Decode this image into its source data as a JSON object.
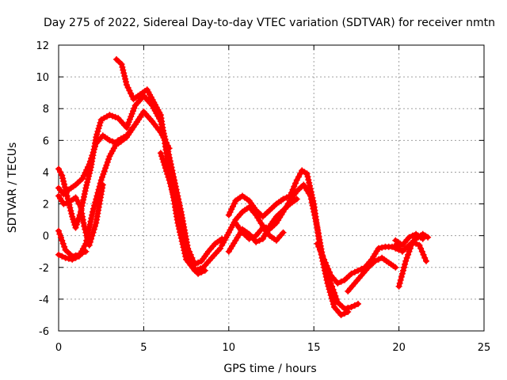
{
  "chart_data": {
    "type": "scatter",
    "title": "Day 275 of 2022, Sidereal Day-to-day VTEC variation (SDTVAR) for receiver nmtn",
    "xlabel": "GPS time / hours",
    "ylabel": "SDTVAR / TECUs",
    "xlim": [
      0,
      25
    ],
    "ylim": [
      -6,
      12
    ],
    "xticks": [
      0,
      5,
      10,
      15,
      20,
      25
    ],
    "xtick_labels": [
      "0",
      "5",
      "10",
      "15",
      "20",
      "25"
    ],
    "yticks": [
      -6,
      -4,
      -2,
      0,
      2,
      4,
      6,
      8,
      10,
      12
    ],
    "ytick_labels": [
      "-6",
      "-4",
      "-2",
      "0",
      "2",
      "4",
      "6",
      "8",
      "10",
      "12"
    ],
    "grid": true,
    "marker": "+",
    "color": "#ff0000",
    "series": [
      {
        "name": "track-1",
        "x": [
          0.0,
          0.2,
          0.5,
          0.8,
          1.0,
          1.3,
          1.6,
          1.9,
          2.2,
          2.5,
          3.0,
          3.5,
          4.0,
          4.5,
          5.0,
          5.3
        ],
        "y": [
          4.2,
          3.8,
          2.5,
          1.2,
          0.5,
          1.5,
          3.0,
          4.3,
          6.2,
          7.3,
          7.6,
          7.4,
          6.8,
          8.2,
          8.8,
          8.5
        ]
      },
      {
        "name": "track-2",
        "x": [
          0.0,
          0.3,
          0.6,
          1.0,
          1.4,
          1.8,
          2.2,
          2.6,
          3.0,
          3.5,
          4.0,
          4.5,
          5.0,
          5.5,
          6.0,
          6.5
        ],
        "y": [
          3.0,
          2.6,
          2.9,
          3.2,
          3.6,
          4.5,
          5.8,
          6.3,
          6.0,
          5.8,
          6.2,
          7.0,
          7.8,
          7.2,
          6.5,
          5.5
        ]
      },
      {
        "name": "track-3",
        "x": [
          0.0,
          0.4,
          0.8,
          1.2,
          1.6,
          2.0,
          2.5,
          3.0,
          3.5,
          4.0,
          4.5,
          5.0,
          5.5
        ],
        "y": [
          -1.2,
          -1.4,
          -1.5,
          -1.3,
          -0.5,
          1.5,
          3.5,
          5.0,
          6.0,
          6.3,
          7.0,
          7.8,
          7.2
        ]
      },
      {
        "name": "track-4",
        "x": [
          0.0,
          0.3,
          0.6,
          1.0,
          1.3,
          1.5,
          1.8,
          2.2,
          2.6
        ],
        "y": [
          2.5,
          2.0,
          2.1,
          2.4,
          1.8,
          0.6,
          -0.6,
          0.8,
          3.2
        ]
      },
      {
        "name": "track-5",
        "x": [
          0.0,
          0.4,
          0.8,
          1.2,
          1.6
        ],
        "y": [
          0.3,
          -0.9,
          -1.3,
          -1.2,
          -1.0
        ]
      },
      {
        "name": "track-6",
        "x": [
          3.4,
          3.7,
          4.0,
          4.4,
          4.8,
          5.2,
          5.6,
          6.0,
          6.5,
          7.0,
          7.5,
          8.0,
          8.5,
          9.0,
          9.5
        ],
        "y": [
          11.1,
          10.8,
          9.5,
          8.6,
          8.9,
          9.2,
          8.4,
          7.6,
          4.0,
          0.8,
          -1.5,
          -2.2,
          -2.0,
          -1.4,
          -0.8
        ]
      },
      {
        "name": "track-7",
        "x": [
          5.0,
          5.5,
          6.0,
          6.4,
          6.8,
          7.2,
          7.6,
          8.0,
          8.4,
          8.8,
          9.2,
          9.6
        ],
        "y": [
          8.8,
          8.2,
          7.2,
          5.5,
          3.5,
          1.5,
          -0.8,
          -1.8,
          -1.6,
          -1.0,
          -0.5,
          -0.2
        ]
      },
      {
        "name": "track-8",
        "x": [
          6.0,
          6.5,
          7.0,
          7.4,
          7.8,
          8.2,
          8.6
        ],
        "y": [
          5.2,
          3.5,
          1.5,
          -0.5,
          -1.8,
          -2.4,
          -2.2
        ]
      },
      {
        "name": "track-9",
        "x": [
          10.0,
          10.4,
          10.8,
          11.2,
          11.6,
          12.0,
          12.4,
          12.8,
          13.2,
          13.6,
          14.0,
          14.3,
          14.6,
          15.0,
          15.4,
          15.8,
          16.2,
          16.6,
          17.0
        ],
        "y": [
          1.3,
          2.2,
          2.5,
          2.2,
          1.6,
          1.2,
          1.6,
          2.0,
          2.3,
          2.5,
          3.5,
          4.1,
          3.9,
          2.0,
          -1.0,
          -3.0,
          -4.5,
          -5.0,
          -4.8
        ]
      },
      {
        "name": "track-10",
        "x": [
          9.6,
          10.0,
          10.4,
          10.8,
          11.2,
          11.6,
          12.0,
          12.4,
          12.8,
          13.2,
          13.6,
          14.0,
          14.4,
          14.8,
          15.2,
          15.6,
          16.0,
          16.4,
          16.8,
          17.2,
          17.6
        ],
        "y": [
          -0.6,
          0.2,
          1.0,
          1.5,
          1.8,
          1.3,
          0.6,
          0.4,
          0.8,
          1.5,
          2.2,
          2.8,
          3.2,
          2.5,
          0.5,
          -1.8,
          -3.0,
          -4.2,
          -4.6,
          -4.5,
          -4.3
        ]
      },
      {
        "name": "track-11",
        "x": [
          10.0,
          10.4,
          10.8,
          11.2,
          11.6,
          12.0,
          12.4,
          12.8,
          13.2,
          13.6,
          14.0
        ],
        "y": [
          -1.0,
          -0.3,
          0.4,
          0.1,
          -0.4,
          -0.2,
          0.6,
          1.2,
          1.6,
          2.0,
          2.3
        ]
      },
      {
        "name": "track-12",
        "x": [
          10.4,
          10.8,
          11.2,
          11.6,
          12.0,
          12.4,
          12.8,
          13.2
        ],
        "y": [
          0.8,
          0.2,
          -0.2,
          0.0,
          0.5,
          0.0,
          -0.3,
          0.2
        ]
      },
      {
        "name": "track-13",
        "x": [
          15.2,
          15.6,
          16.0,
          16.4,
          16.8,
          17.2,
          17.6,
          18.0,
          18.4,
          18.8,
          19.2,
          19.6,
          20.0
        ],
        "y": [
          -0.5,
          -1.5,
          -2.5,
          -3.0,
          -2.8,
          -2.4,
          -2.2,
          -2.0,
          -1.5,
          -0.8,
          -0.7,
          -0.7,
          -0.9
        ]
      },
      {
        "name": "track-14",
        "x": [
          17.0,
          17.4,
          17.8,
          18.2,
          18.6,
          19.0,
          19.4,
          19.8
        ],
        "y": [
          -3.5,
          -3.0,
          -2.5,
          -2.0,
          -1.6,
          -1.4,
          -1.7,
          -2.0
        ]
      },
      {
        "name": "track-15",
        "x": [
          19.8,
          20.2,
          20.6,
          21.0,
          21.4,
          21.7
        ],
        "y": [
          -0.6,
          -1.0,
          -0.6,
          -0.2,
          0.1,
          -0.1
        ]
      },
      {
        "name": "track-16",
        "x": [
          20.0,
          20.4,
          20.8,
          21.2,
          21.6
        ],
        "y": [
          -3.2,
          -1.6,
          -0.4,
          -0.6,
          -1.6
        ]
      },
      {
        "name": "track-17",
        "x": [
          19.8,
          20.2,
          20.6,
          21.0,
          21.4
        ],
        "y": [
          -0.3,
          -0.6,
          -0.1,
          0.1,
          -0.2
        ]
      }
    ]
  }
}
